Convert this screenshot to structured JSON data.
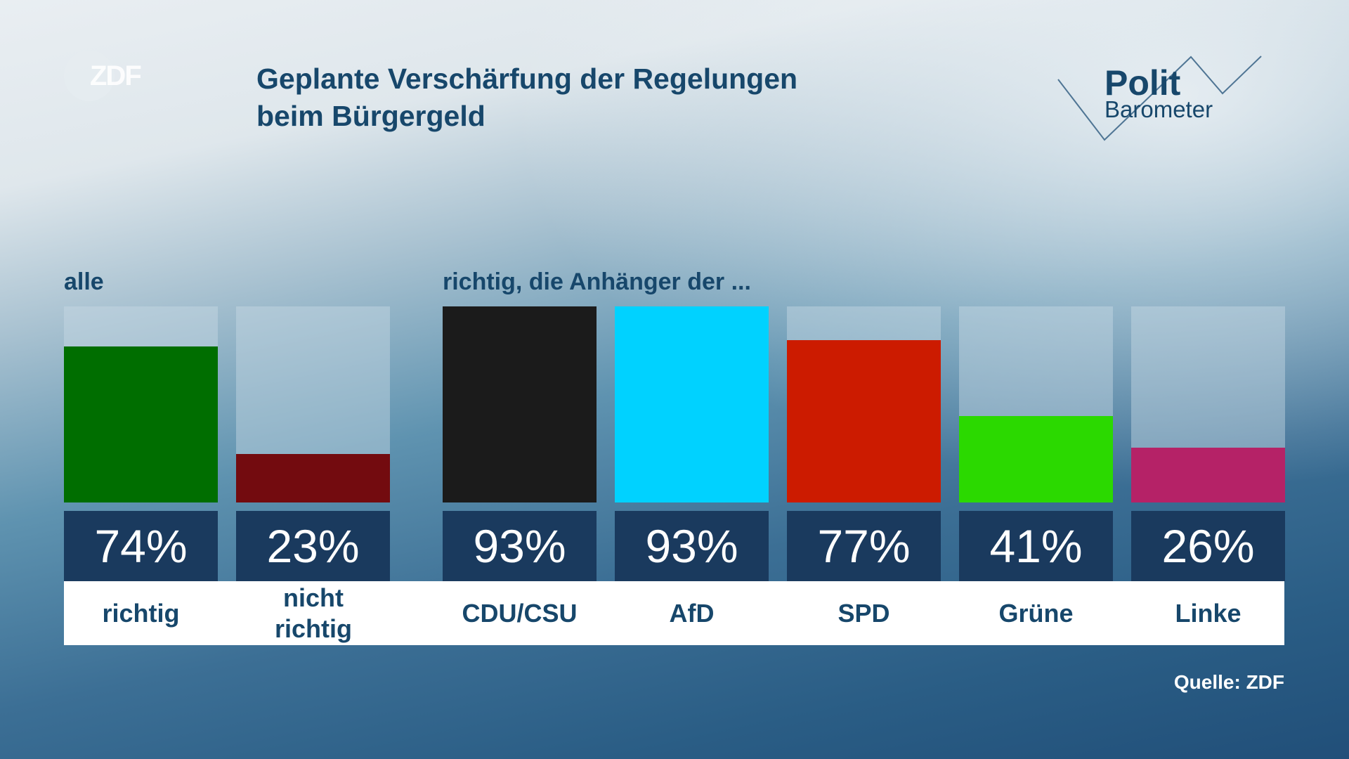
{
  "header": {
    "logo": "ZDF",
    "title_line1": "Geplante Verschärfung der Regelungen",
    "title_line2": "beim Bürgergeld",
    "brand_line1": "Polit",
    "brand_line2": "Barometer"
  },
  "chart_data": {
    "type": "bar",
    "title": "Geplante Verschärfung der Regelungen beim Bürgergeld",
    "groups": [
      {
        "label": "alle",
        "categories": [
          "richtig",
          "nicht richtig"
        ]
      },
      {
        "label": "richtig, die Anhänger der ...",
        "categories": [
          "CDU/CSU",
          "AfD",
          "SPD",
          "Grüne",
          "Linke"
        ]
      }
    ],
    "categories": [
      "richtig",
      "nicht richtig",
      "CDU/CSU",
      "AfD",
      "SPD",
      "Grüne",
      "Linke"
    ],
    "values": [
      74,
      23,
      93,
      93,
      77,
      41,
      26
    ],
    "value_labels": [
      "74%",
      "23%",
      "93%",
      "93%",
      "77%",
      "41%",
      "26%"
    ],
    "colors": [
      "#006e00",
      "#730b0f",
      "#1b1b1b",
      "#00d2ff",
      "#cc1b00",
      "#2bd900",
      "#b52267"
    ],
    "ylim": [
      0,
      93
    ],
    "source": "Quelle: ZDF"
  }
}
